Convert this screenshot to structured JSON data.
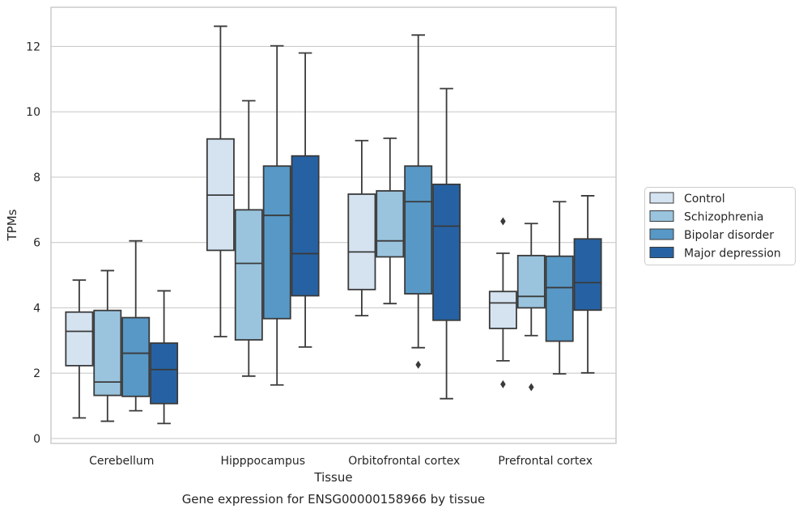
{
  "caption": "Gene expression for ENSG00000158966 by tissue",
  "chart_data": {
    "type": "box",
    "xlabel": "Tissue",
    "ylabel": "TPMs",
    "ylim": [
      -0.15,
      13.2
    ],
    "yticks": [
      0,
      2,
      4,
      6,
      8,
      10,
      12
    ],
    "grid": "horizontal",
    "legend_position": "right",
    "categories": [
      "Cerebellum",
      "Hipppocampus",
      "Orbitofrontal cortex",
      "Prefrontal cortex"
    ],
    "series": [
      {
        "name": "Control",
        "color": "#d5e3f1",
        "boxes": [
          {
            "whislo": 0.63,
            "q1": 2.23,
            "med": 3.28,
            "q3": 3.87,
            "whishi": 4.85,
            "fliers": []
          },
          {
            "whislo": 3.12,
            "q1": 5.76,
            "med": 7.45,
            "q3": 9.17,
            "whishi": 12.62,
            "fliers": []
          },
          {
            "whislo": 3.76,
            "q1": 4.56,
            "med": 5.71,
            "q3": 7.48,
            "whishi": 9.12,
            "fliers": []
          },
          {
            "whislo": 2.38,
            "q1": 3.37,
            "med": 4.15,
            "q3": 4.5,
            "whishi": 5.67,
            "fliers": [
              6.65,
              1.66
            ]
          }
        ]
      },
      {
        "name": "Schizophrenia",
        "color": "#9ac4de",
        "boxes": [
          {
            "whislo": 0.53,
            "q1": 1.32,
            "med": 1.73,
            "q3": 3.92,
            "whishi": 5.14,
            "fliers": []
          },
          {
            "whislo": 1.91,
            "q1": 3.02,
            "med": 5.36,
            "q3": 7.0,
            "whishi": 10.34,
            "fliers": []
          },
          {
            "whislo": 4.13,
            "q1": 5.56,
            "med": 6.05,
            "q3": 7.58,
            "whishi": 9.19,
            "fliers": []
          },
          {
            "whislo": 3.15,
            "q1": 4.0,
            "med": 4.35,
            "q3": 5.6,
            "whishi": 6.58,
            "fliers": [
              1.57
            ]
          }
        ]
      },
      {
        "name": "Bipolar disorder",
        "color": "#5798c6",
        "boxes": [
          {
            "whislo": 0.85,
            "q1": 1.29,
            "med": 2.61,
            "q3": 3.7,
            "whishi": 6.05,
            "fliers": []
          },
          {
            "whislo": 1.64,
            "q1": 3.67,
            "med": 6.83,
            "q3": 8.34,
            "whishi": 12.02,
            "fliers": []
          },
          {
            "whislo": 2.78,
            "q1": 4.43,
            "med": 7.25,
            "q3": 8.34,
            "whishi": 12.35,
            "fliers": [
              2.26
            ]
          },
          {
            "whislo": 1.98,
            "q1": 2.98,
            "med": 4.62,
            "q3": 5.58,
            "whishi": 7.25,
            "fliers": []
          }
        ]
      },
      {
        "name": "Major depression",
        "color": "#2662a3",
        "boxes": [
          {
            "whislo": 0.46,
            "q1": 1.07,
            "med": 2.11,
            "q3": 2.92,
            "whishi": 4.52,
            "fliers": []
          },
          {
            "whislo": 2.8,
            "q1": 4.37,
            "med": 5.66,
            "q3": 8.65,
            "whishi": 11.8,
            "fliers": []
          },
          {
            "whislo": 1.22,
            "q1": 3.62,
            "med": 6.5,
            "q3": 7.78,
            "whishi": 10.71,
            "fliers": []
          },
          {
            "whislo": 2.01,
            "q1": 3.93,
            "med": 4.77,
            "q3": 6.11,
            "whishi": 7.43,
            "fliers": []
          }
        ]
      }
    ]
  }
}
